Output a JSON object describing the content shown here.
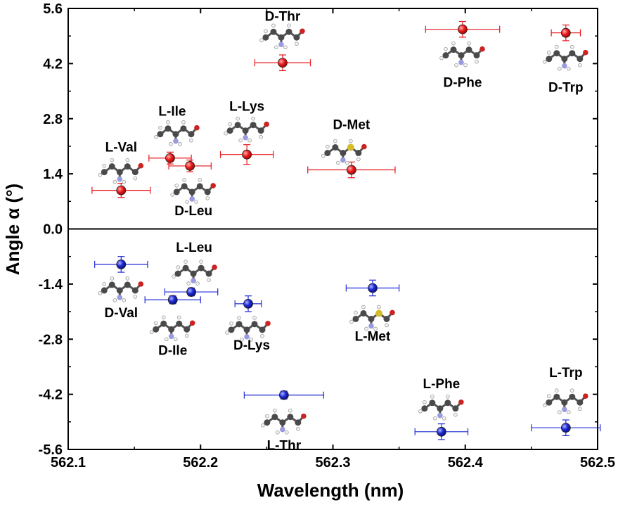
{
  "chart_data": {
    "type": "scatter",
    "xlabel": "Wavelength (nm)",
    "ylabel": "Angle α (°)",
    "xlim": [
      562.1,
      562.5
    ],
    "ylim": [
      -5.6,
      5.6
    ],
    "xticks": [
      "562.1",
      "562.2",
      "562.3",
      "562.4",
      "562.5"
    ],
    "yticks": [
      "5.6",
      "4.2",
      "2.8",
      "1.4",
      "0.0",
      "-1.4",
      "-2.8",
      "-4.2",
      "-5.6"
    ],
    "zero_line": true,
    "colors": {
      "D_series": "#e8141b",
      "L_series": "#1f2bd6",
      "errorbar_D": "#e8141b",
      "errorbar_L": "#1f2bd6"
    },
    "series": [
      {
        "color": "#e8141b",
        "points": [
          {
            "label": "L-Val",
            "x": 562.14,
            "y": 0.98,
            "xerr": 0.022,
            "yerr": 0.18
          },
          {
            "label": "L-Ile",
            "x": 562.177,
            "y": 1.8,
            "xerr": 0.016,
            "yerr": 0.15
          },
          {
            "label": "D-Leu",
            "x": 562.192,
            "y": 1.6,
            "xerr": 0.016,
            "yerr": 0.15
          },
          {
            "label": "L-Lys",
            "x": 562.235,
            "y": 1.89,
            "xerr": 0.02,
            "yerr": 0.25
          },
          {
            "label": "D-Thr",
            "x": 562.262,
            "y": 4.22,
            "xerr": 0.021,
            "yerr": 0.2
          },
          {
            "label": "D-Met",
            "x": 562.314,
            "y": 1.5,
            "xerr": 0.033,
            "yerr": 0.2
          },
          {
            "label": "D-Phe",
            "x": 562.398,
            "y": 5.07,
            "xerr": 0.028,
            "yerr": 0.2
          },
          {
            "label": "D-Trp",
            "x": 562.476,
            "y": 4.98,
            "xerr": 0.011,
            "yerr": 0.2
          }
        ]
      },
      {
        "color": "#1f2bd6",
        "points": [
          {
            "label": "D-Val",
            "x": 562.14,
            "y": -0.9,
            "xerr": 0.02,
            "yerr": 0.2
          },
          {
            "label": "L-Leu",
            "x": 562.193,
            "y": -1.6,
            "xerr": 0.02,
            "yerr": 0.1
          },
          {
            "label": "D-Ile",
            "x": 562.179,
            "y": -1.8,
            "xerr": 0.021,
            "yerr": 0.1
          },
          {
            "label": "D-Lys",
            "x": 562.236,
            "y": -1.9,
            "xerr": 0.01,
            "yerr": 0.2
          },
          {
            "label": "L-Met",
            "x": 562.33,
            "y": -1.5,
            "xerr": 0.02,
            "yerr": 0.2
          },
          {
            "label": "L-Thr",
            "x": 562.263,
            "y": -4.22,
            "xerr": 0.03,
            "yerr": 0.1
          },
          {
            "label": "L-Phe",
            "x": 562.382,
            "y": -5.15,
            "xerr": 0.02,
            "yerr": 0.2
          },
          {
            "label": "L-Trp",
            "x": 562.476,
            "y": -5.05,
            "xerr": 0.026,
            "yerr": 0.2
          }
        ]
      }
    ]
  }
}
